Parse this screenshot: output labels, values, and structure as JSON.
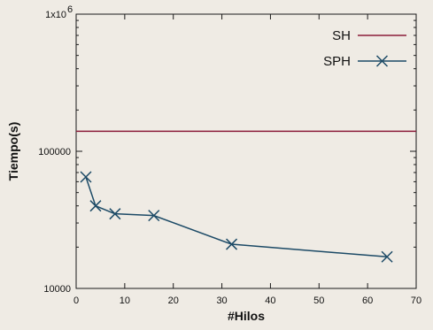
{
  "chart_data": {
    "type": "line",
    "xlabel": "#Hilos",
    "ylabel": "Tiempo(s)",
    "xlim": [
      0,
      70
    ],
    "ylim": [
      10000,
      1000000
    ],
    "yscale": "log",
    "x_ticks": [
      "0",
      "10",
      "20",
      "30",
      "40",
      "50",
      "60",
      "70"
    ],
    "y_tick_labels": {
      "major_low": "10000",
      "major_mid": "100000",
      "top_base": "1x10",
      "top_exp": "6"
    },
    "legend_position": "top-right",
    "series": [
      {
        "name": "SH",
        "color": "#8b1c3a",
        "marker": "none",
        "x": [
          0,
          70
        ],
        "values": [
          140000,
          140000
        ]
      },
      {
        "name": "SPH",
        "color": "#1c4a66",
        "marker": "x",
        "x": [
          2,
          4,
          8,
          16,
          32,
          64
        ],
        "values": [
          65000,
          40000,
          35000,
          34000,
          21000,
          17000
        ]
      }
    ]
  }
}
